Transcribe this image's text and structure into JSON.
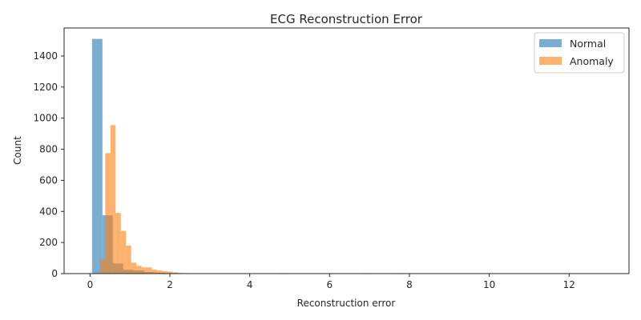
{
  "chart_data": {
    "type": "histogram",
    "title": "ECG Reconstruction Error",
    "xlabel": "Reconstruction error",
    "ylabel": "Count",
    "xlim": [
      -0.65,
      13.5
    ],
    "ylim": [
      0,
      1580
    ],
    "xticks": [
      0,
      2,
      4,
      6,
      8,
      10,
      12
    ],
    "yticks": [
      0,
      200,
      400,
      600,
      800,
      1000,
      1200,
      1400
    ],
    "grid": false,
    "legend": "top-right",
    "series": [
      {
        "name": "Normal",
        "color": "#1f77b4",
        "opacity": 0.6,
        "bin_width": 0.26,
        "bins": [
          [
            0.05,
            1510
          ],
          [
            0.31,
            375
          ],
          [
            0.57,
            65
          ],
          [
            0.83,
            25
          ],
          [
            1.09,
            20
          ],
          [
            1.35,
            10
          ],
          [
            1.61,
            6
          ],
          [
            1.87,
            4
          ],
          [
            2.13,
            3
          ],
          [
            2.39,
            2
          ],
          [
            2.65,
            2
          ],
          [
            2.91,
            2
          ],
          [
            3.17,
            2
          ],
          [
            3.43,
            2
          ],
          [
            3.69,
            2
          ],
          [
            3.95,
            2
          ],
          [
            4.21,
            2
          ],
          [
            4.73,
            3
          ],
          [
            6.81,
            3
          ],
          [
            7.59,
            3
          ]
        ]
      },
      {
        "name": "Anomaly",
        "color": "#ff7f0e",
        "opacity": 0.6,
        "bin_width": 0.13,
        "bins": [
          [
            0.25,
            90
          ],
          [
            0.38,
            775
          ],
          [
            0.51,
            955
          ],
          [
            0.64,
            390
          ],
          [
            0.77,
            275
          ],
          [
            0.9,
            180
          ],
          [
            1.03,
            70
          ],
          [
            1.16,
            50
          ],
          [
            1.29,
            40
          ],
          [
            1.42,
            40
          ],
          [
            1.55,
            25
          ],
          [
            1.68,
            20
          ],
          [
            1.81,
            15
          ],
          [
            1.94,
            12
          ],
          [
            2.07,
            8
          ],
          [
            2.2,
            4
          ],
          [
            2.33,
            3
          ],
          [
            2.46,
            2
          ],
          [
            2.59,
            2
          ],
          [
            2.72,
            2
          ],
          [
            2.85,
            2
          ],
          [
            2.98,
            2
          ],
          [
            3.11,
            2
          ],
          [
            3.24,
            2
          ],
          [
            3.37,
            1
          ],
          [
            3.5,
            1
          ],
          [
            3.63,
            1
          ],
          [
            3.76,
            1
          ]
        ]
      }
    ]
  }
}
